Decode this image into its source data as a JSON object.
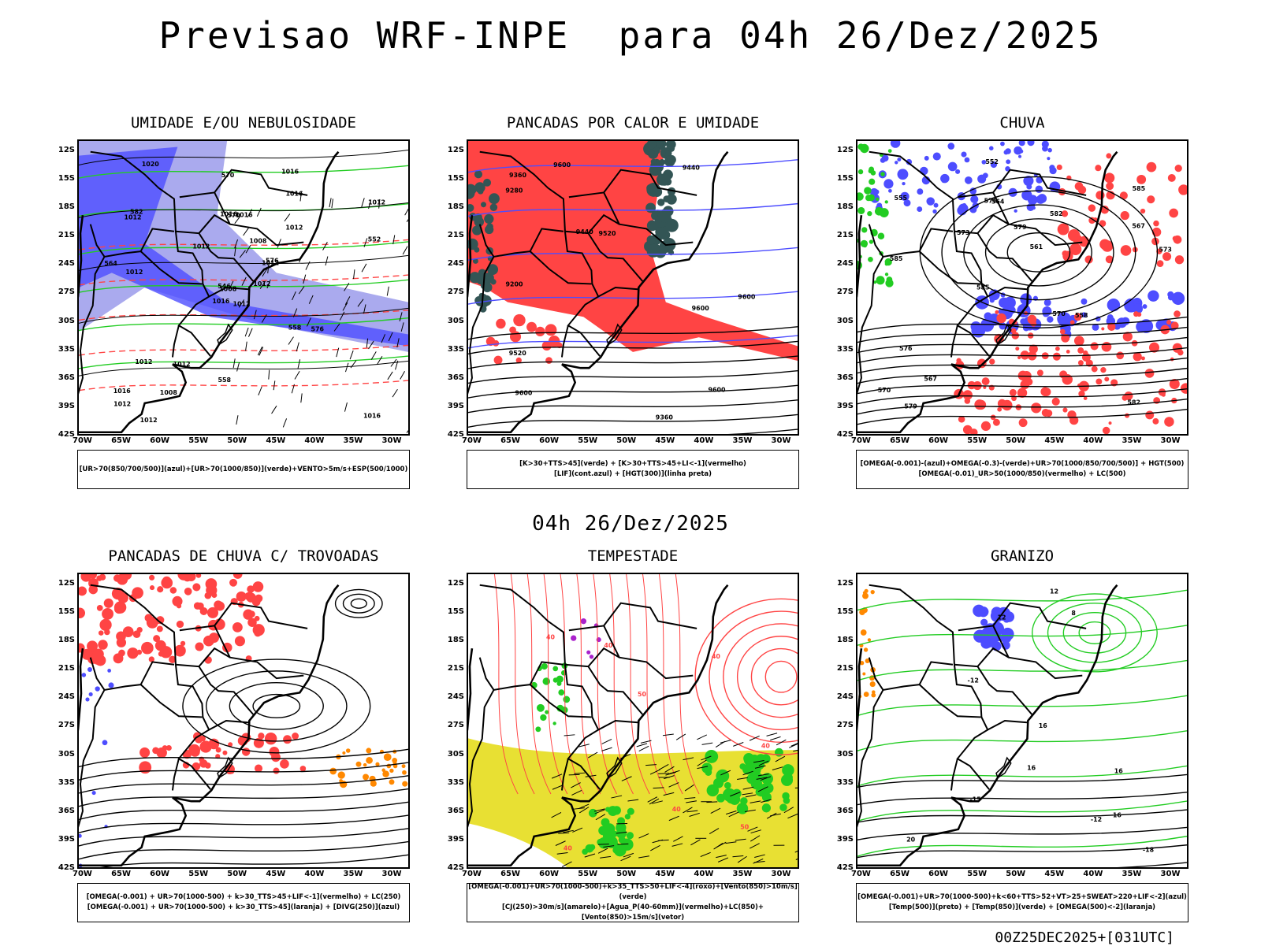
{
  "header": {
    "title": "Previsao WRF-INPE  para 04h 26/Dez/2025"
  },
  "middle_label": "04h 26/Dez/2025",
  "footer": "00Z25DEC2025+[031UTC]",
  "lat_labels": [
    "12S",
    "15S",
    "18S",
    "21S",
    "24S",
    "27S",
    "30S",
    "33S",
    "36S",
    "39S",
    "42S"
  ],
  "lon_labels": [
    "70W",
    "65W",
    "60W",
    "55W",
    "50W",
    "45W",
    "40W",
    "35W",
    "30W"
  ],
  "colors": {
    "blue": "#4d4dff",
    "lightblue": "#aaaaee",
    "green": "#22cc22",
    "red": "#ff4444",
    "darkteal": "#335555",
    "yellow": "#e8e033",
    "orange": "#ff8800",
    "purple": "#aa22cc"
  },
  "panels": [
    {
      "title": "UMIDADE E/OU NEBULOSIDADE",
      "legend": [
        "[UR>70(850/700/500)](azul)+[UR>70(1000/850)](verde)+VENTO>5m/s+ESP(500/1000)"
      ],
      "labels": [
        "1012",
        "1012",
        "1008",
        "1016",
        "1012",
        "1012",
        "1016",
        "1016",
        "1016",
        "1012",
        "1020",
        "1016",
        "1012",
        "1012",
        "1016",
        "1012",
        "1012",
        "1016",
        "1008",
        "1012",
        "1012",
        "1012",
        "1008",
        "570",
        "576",
        "576",
        "582",
        "570",
        "564",
        "558",
        "552",
        "546",
        "558"
      ]
    },
    {
      "title": "PANCADAS POR CALOR E UMIDADE",
      "legend": [
        "[K>30+TTS>45](verde) + [K>30+TTS>45+LI<-1](vermelho)",
        "[LIF](cont.azul) + [HGT(300)](linha preta)"
      ],
      "labels": [
        "9600",
        "9600",
        "9600",
        "9600",
        "9520",
        "9600",
        "9520",
        "9440",
        "9440",
        "9360",
        "9280",
        "9200",
        "9360"
      ]
    },
    {
      "title": "CHUVA",
      "legend": [
        "[OMEGA(-0.001)-(azul)+OMEGA(-0.3)-(verde)+UR>70(1000/850/700/500)] + HGT(500)",
        "[OMEGA(-0.01)_UR>50(1000/850)(vermelho) + LC(500)"
      ],
      "labels": [
        "582",
        "585",
        "585",
        "585",
        "582",
        "579",
        "576",
        "579",
        "576",
        "573",
        "570",
        "567",
        "564",
        "561",
        "558",
        "555",
        "552",
        "573",
        "570",
        "567"
      ]
    },
    {
      "title": "PANCADAS DE CHUVA C/ TROVOADAS",
      "legend": [
        "[OMEGA(-0.001) + UR>70(1000-500) + k>30_TTS>45+LIF<-1](vermelho) + LC(250)",
        "[OMEGA(-0.001) + UR>70(1000-500) + k>30_TTS>45](laranja) + [DIVG(250)](azul)"
      ],
      "labels": []
    },
    {
      "title": "TEMPESTADE",
      "legend": [
        "[OMEGA(-0.001)+UR>70(1000-500)+k>35_TTS>50+LIF<-4](roxo)+[Vento(850)>10m/s](verde)",
        "[CJ(250)>30m/s](amarelo)+[Agua_P(40-60mm)](vermelho)+LC(850)+[Vento(850)>15m/s](vetor)"
      ],
      "labels": [
        "40",
        "40",
        "40",
        "40",
        "40",
        "40",
        "50",
        "50"
      ]
    },
    {
      "title": "GRANIZO",
      "legend": [
        "[OMEGA(-0.001)+UR>70(1000-500)+k<60+TTS>52+VT>25+SWEAT>220+LIF<-2](azul)",
        "[Temp(500)](preto) + [Temp(850)](verde) + [OMEGA(500)<-2](laranja)"
      ],
      "labels": [
        "20",
        "16",
        "16",
        "16",
        "12",
        "12",
        "16",
        "8",
        "-12",
        "-15",
        "-18",
        "-12"
      ]
    }
  ]
}
